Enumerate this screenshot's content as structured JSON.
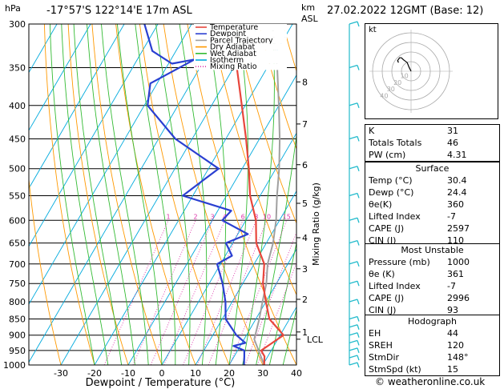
{
  "header": {
    "hpa_label": "hPa",
    "location": "-17°57'S  122°14'E  17m  ASL",
    "km_label": "km",
    "asl_label": "ASL",
    "datetime": "27.02.2022  12GMT  (Base: 12)"
  },
  "legend": [
    "Temperature",
    "Dewpoint",
    "Parcel Trajectory",
    "Dry Adiabat",
    "Wet Adiabat",
    "Isotherm",
    "Mixing Ratio"
  ],
  "colors": {
    "temperature": "#e8463c",
    "dewpoint": "#2a3fd1",
    "parcel": "#a0a0a0",
    "dry_adiabat": "#ff9900",
    "wet_adiabat": "#33bb33",
    "isotherm": "#00aadd",
    "mixing_ratio": "#dd33aa",
    "wind": "#22bbcc",
    "hodo_trace": "#000000"
  },
  "chart_data": {
    "type": "skew-t",
    "xlabel": "Dewpoint / Temperature (°C)",
    "ylabel_right": "Mixing Ratio (g/kg)",
    "pressure_ticks": [
      300,
      350,
      400,
      450,
      500,
      550,
      600,
      650,
      700,
      750,
      800,
      850,
      900,
      950,
      1000
    ],
    "temp_ticks": [
      -30,
      -20,
      -10,
      0,
      10,
      20,
      30,
      40
    ],
    "xlim": [
      -35,
      40
    ],
    "ylim": [
      1000,
      300
    ],
    "altitude_km": [
      {
        "km": "8",
        "p": 368
      },
      {
        "km": "7",
        "p": 427
      },
      {
        "km": "6",
        "p": 493
      },
      {
        "km": "5",
        "p": 565
      },
      {
        "km": "4",
        "p": 638
      },
      {
        "km": "3",
        "p": 712
      },
      {
        "km": "2",
        "p": 793
      },
      {
        "km": "1",
        "p": 890
      }
    ],
    "lcl": {
      "label": "LCL",
      "p": 913
    },
    "mixing_ratio_labels": [
      "1",
      "2",
      "3",
      "4",
      "6",
      "8",
      "10",
      "15",
      "20",
      "25"
    ],
    "temperature_profile": [
      {
        "p": 1000,
        "t": 30.4
      },
      {
        "p": 970,
        "t": 29
      },
      {
        "p": 950,
        "t": 27
      },
      {
        "p": 925,
        "t": 29
      },
      {
        "p": 900,
        "t": 31
      },
      {
        "p": 850,
        "t": 24
      },
      {
        "p": 800,
        "t": 20
      },
      {
        "p": 750,
        "t": 16
      },
      {
        "p": 700,
        "t": 13
      },
      {
        "p": 650,
        "t": 7
      },
      {
        "p": 600,
        "t": 3
      },
      {
        "p": 550,
        "t": -3
      },
      {
        "p": 500,
        "t": -8
      },
      {
        "p": 450,
        "t": -14
      },
      {
        "p": 400,
        "t": -21
      },
      {
        "p": 350,
        "t": -29
      },
      {
        "p": 300,
        "t": -38
      }
    ],
    "dewpoint_profile": [
      {
        "p": 1000,
        "t": 24.4
      },
      {
        "p": 970,
        "t": 23
      },
      {
        "p": 950,
        "t": 22
      },
      {
        "p": 935,
        "t": 18
      },
      {
        "p": 925,
        "t": 21
      },
      {
        "p": 900,
        "t": 17
      },
      {
        "p": 850,
        "t": 11
      },
      {
        "p": 800,
        "t": 8
      },
      {
        "p": 750,
        "t": 4
      },
      {
        "p": 700,
        "t": -1
      },
      {
        "p": 680,
        "t": 2
      },
      {
        "p": 650,
        "t": -2
      },
      {
        "p": 630,
        "t": 3
      },
      {
        "p": 600,
        "t": -7
      },
      {
        "p": 580,
        "t": -6
      },
      {
        "p": 550,
        "t": -23
      },
      {
        "p": 500,
        "t": -17
      },
      {
        "p": 450,
        "t": -35
      },
      {
        "p": 400,
        "t": -49
      },
      {
        "p": 370,
        "t": -52
      },
      {
        "p": 340,
        "t": -43
      },
      {
        "p": 345,
        "t": -49
      },
      {
        "p": 330,
        "t": -57
      },
      {
        "p": 300,
        "t": -64
      }
    ],
    "parcel_profile": [
      {
        "p": 1000,
        "t": 30.4
      },
      {
        "p": 913,
        "t": 23
      },
      {
        "p": 850,
        "t": 21
      },
      {
        "p": 800,
        "t": 19
      },
      {
        "p": 750,
        "t": 17
      },
      {
        "p": 700,
        "t": 14
      },
      {
        "p": 650,
        "t": 12
      },
      {
        "p": 600,
        "t": 9
      },
      {
        "p": 550,
        "t": 5
      },
      {
        "p": 500,
        "t": 1
      },
      {
        "p": 450,
        "t": -4
      },
      {
        "p": 400,
        "t": -10
      },
      {
        "p": 350,
        "t": -17
      },
      {
        "p": 300,
        "t": -26
      }
    ],
    "wind_pressures": [
      1000,
      975,
      950,
      925,
      900,
      875,
      850,
      800,
      750,
      700,
      650,
      600,
      550,
      500,
      450,
      400,
      350,
      300
    ]
  },
  "hodograph": {
    "units_label": "kt",
    "ring_labels": [
      "10",
      "20",
      "30",
      "40"
    ],
    "trace": [
      [
        0,
        0
      ],
      [
        -2,
        4
      ],
      [
        -4,
        9
      ],
      [
        -8,
        12
      ],
      [
        -10,
        14
      ],
      [
        -12,
        14
      ],
      [
        -14,
        11
      ],
      [
        -13,
        9
      ]
    ]
  },
  "indices": [
    {
      "label": "K",
      "value": "31"
    },
    {
      "label": "Totals Totals",
      "value": "46"
    },
    {
      "label": "PW (cm)",
      "value": "4.31"
    }
  ],
  "surface": {
    "title": "Surface",
    "rows": [
      {
        "label": "Temp (°C)",
        "value": "30.4"
      },
      {
        "label": "Dewp (°C)",
        "value": "24.4"
      },
      {
        "label": "θe(K)",
        "value": "360"
      },
      {
        "label": "Lifted Index",
        "value": "-7"
      },
      {
        "label": "CAPE (J)",
        "value": "2597"
      },
      {
        "label": "CIN (J)",
        "value": "110"
      }
    ]
  },
  "most_unstable": {
    "title": "Most Unstable",
    "rows": [
      {
        "label": "Pressure (mb)",
        "value": "1000"
      },
      {
        "label": "θe (K)",
        "value": "361"
      },
      {
        "label": "Lifted Index",
        "value": "-7"
      },
      {
        "label": "CAPE (J)",
        "value": "2996"
      },
      {
        "label": "CIN (J)",
        "value": "93"
      }
    ]
  },
  "hodograph_table": {
    "title": "Hodograph",
    "rows": [
      {
        "label": "EH",
        "value": "44"
      },
      {
        "label": "SREH",
        "value": "120"
      },
      {
        "label": "StmDir",
        "value": "148°"
      },
      {
        "label": "StmSpd (kt)",
        "value": "15"
      }
    ]
  },
  "footer": "© weatheronline.co.uk"
}
